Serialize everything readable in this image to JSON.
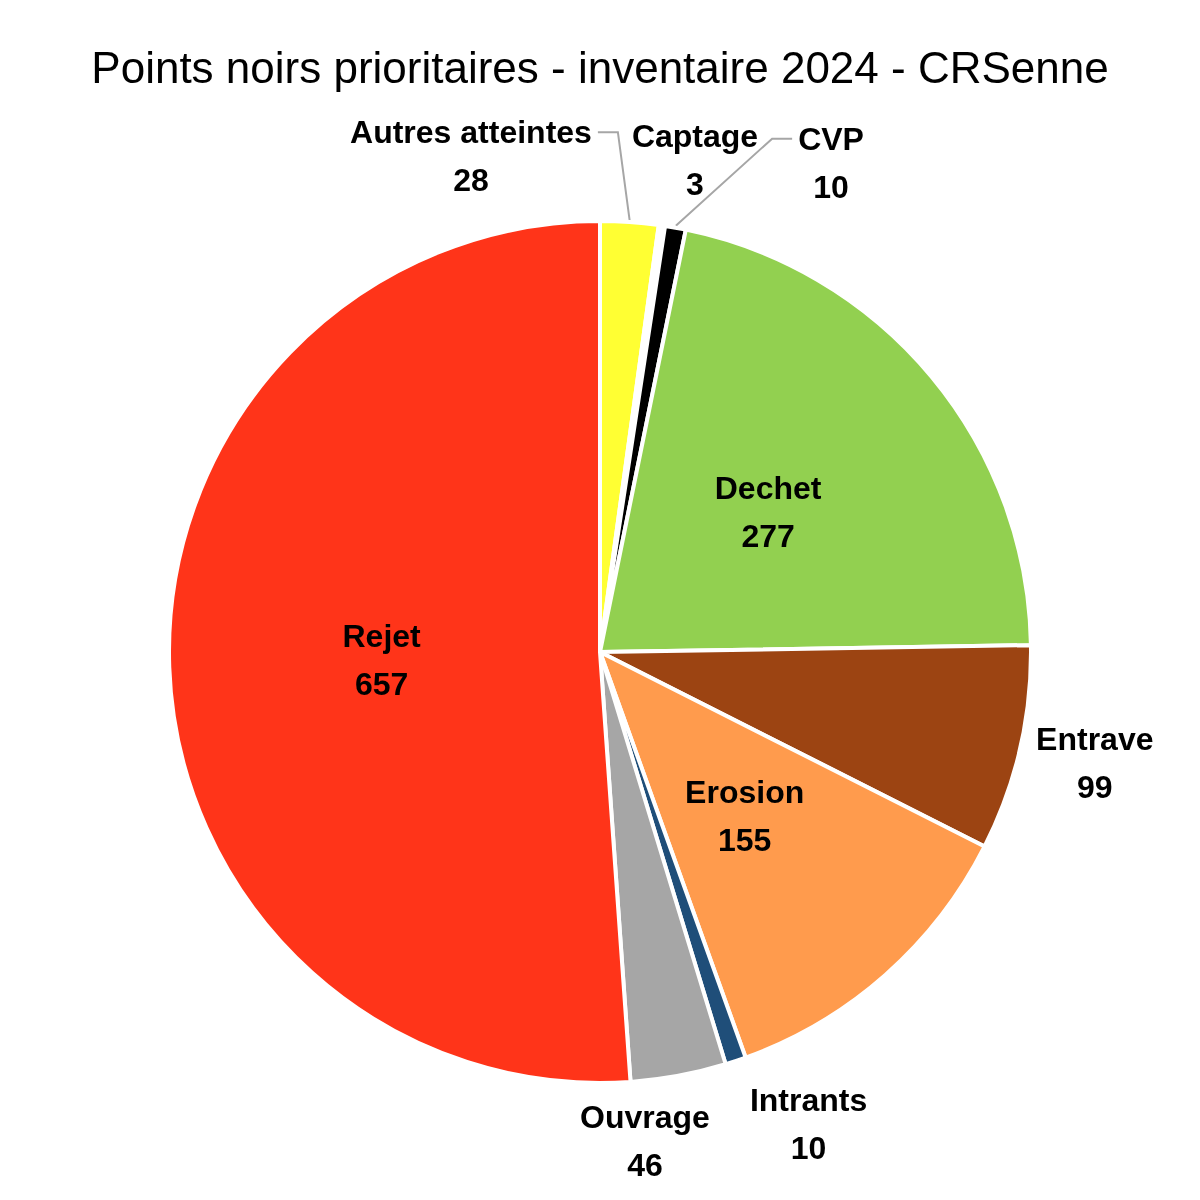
{
  "chart_data": {
    "type": "pie",
    "title": "Points noirs prioritaires - inventaire 2024 - CRSenne",
    "categories": [
      "Autres atteintes",
      "Captage",
      "CVP",
      "Dechet",
      "Entrave",
      "Erosion",
      "Intrants",
      "Ouvrage",
      "Rejet"
    ],
    "values": [
      28,
      3,
      10,
      277,
      99,
      155,
      10,
      46,
      657
    ],
    "colors": [
      "#ffff33",
      "#ffffff",
      "#000000",
      "#92d050",
      "#9c4412",
      "#ff9b4d",
      "#1f4e79",
      "#a6a6a6",
      "#ff3419"
    ],
    "data_labels": true
  }
}
